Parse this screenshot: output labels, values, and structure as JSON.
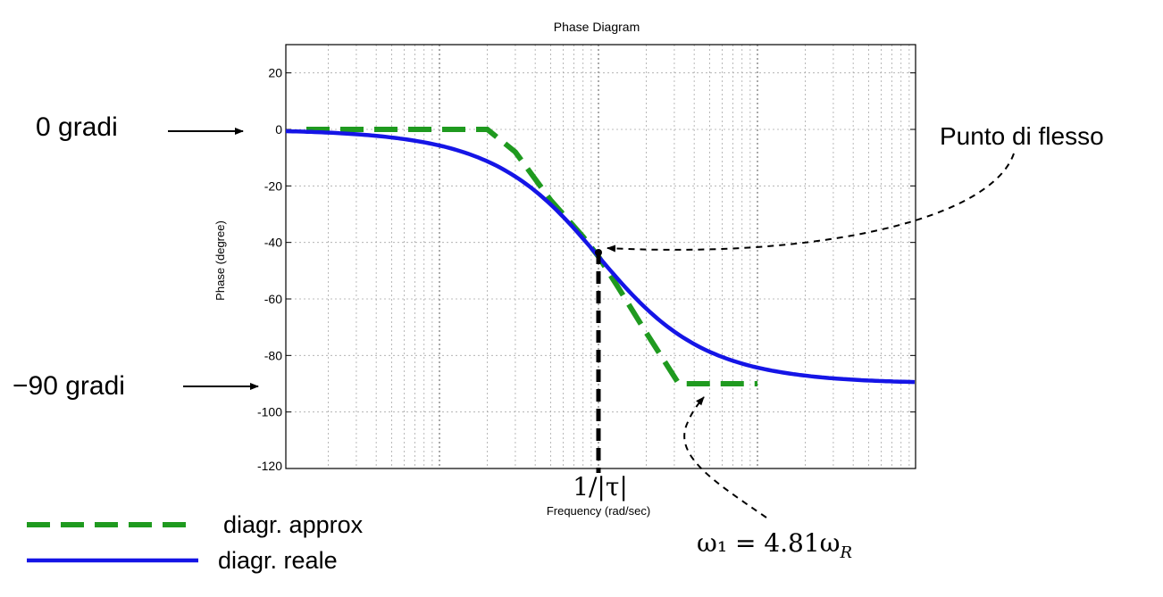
{
  "chart_data": {
    "type": "line",
    "title": "Phase Diagram",
    "xlabel": "Frequency (rad/sec)",
    "ylabel": "Phase (degree)",
    "x_scale": "log",
    "ylim": [
      -120,
      30
    ],
    "yticks": [
      20,
      0,
      -20,
      -40,
      -60,
      -80,
      -100,
      -120
    ],
    "grid": true,
    "series": [
      {
        "name": "diagr. approx",
        "style": "dashed",
        "color": "#1f9a1f",
        "points": [
          [
            0.1,
            0
          ],
          [
            0.2,
            0
          ],
          [
            0.3,
            -8
          ],
          [
            0.5,
            -25
          ],
          [
            0.8,
            -38
          ],
          [
            1,
            -45
          ],
          [
            1.3,
            -55
          ],
          [
            2,
            -72
          ],
          [
            3.2,
            -90
          ],
          [
            10,
            -90
          ]
        ]
      },
      {
        "name": "diagr. reale",
        "style": "solid",
        "color": "#1515e6",
        "points": [
          [
            0.02,
            0
          ],
          [
            0.05,
            -2.9
          ],
          [
            0.1,
            -5.7
          ],
          [
            0.2,
            -11.3
          ],
          [
            0.3,
            -16.7
          ],
          [
            0.5,
            -26.6
          ],
          [
            0.7,
            -35
          ],
          [
            1,
            -45
          ],
          [
            1.5,
            -56.3
          ],
          [
            2,
            -63.4
          ],
          [
            3,
            -71.6
          ],
          [
            5,
            -78.7
          ],
          [
            10,
            -84.3
          ],
          [
            20,
            -87.1
          ],
          [
            40,
            -88.6
          ]
        ]
      }
    ],
    "annotations": {
      "zero_label": "0 gradi",
      "minus90_label": "−90 gradi",
      "inflection_label": "Punto di flesso",
      "tau_label": "1/|τ|",
      "omega_label": "ω₁ = 4.81ω",
      "omega_sub": "R"
    }
  }
}
